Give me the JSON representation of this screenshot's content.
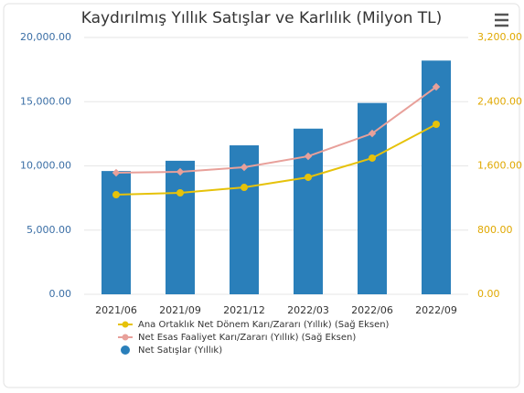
{
  "chart_data": {
    "type": "bar-line",
    "title": "Kaydırılmış Yıllık Satışlar ve Karlılık (Milyon TL)",
    "categories": [
      "2021/06",
      "2021/09",
      "2021/12",
      "2022/03",
      "2022/06",
      "2022/09"
    ],
    "series": [
      {
        "name": "Ana Ortaklık Net Dönem Karı/Zararı (Yıllık) (Sağ Eksen)",
        "type": "line",
        "axis": "y2",
        "color": "#e6c20a",
        "values": [
          1241,
          1264,
          1332,
          1458,
          1697,
          2118
        ]
      },
      {
        "name": "Net Esas Faaliyet Karı/Zararı (Yıllık) (Sağ Eksen)",
        "type": "line",
        "axis": "y2",
        "color": "#e8a09a",
        "values": [
          1515,
          1526,
          1583,
          1720,
          2004,
          2585
        ]
      },
      {
        "name": "Net Satışlar (Yıllık)",
        "type": "bar",
        "color": "#2a7fba",
        "values": [
          9600,
          10400,
          11600,
          12900,
          14900,
          18200
        ]
      }
    ],
    "ylim": [
      0,
      20000
    ],
    "yticks": [
      {
        "value": 0,
        "label": "0.00"
      },
      {
        "value": 5000,
        "label": "5,000.00"
      },
      {
        "value": 10000,
        "label": "10,000.00"
      },
      {
        "value": 15000,
        "label": "15,000.00"
      },
      {
        "value": 20000,
        "label": "20,000.00"
      }
    ],
    "y2lim": [
      0,
      3200
    ],
    "y2ticks": [
      {
        "value": 0,
        "label": "0.00"
      },
      {
        "value": 800,
        "label": "800.00"
      },
      {
        "value": 1600,
        "label": "1,600.00"
      },
      {
        "value": 2400,
        "label": "2,400.00"
      },
      {
        "value": 3200,
        "label": "3,200.00"
      }
    ],
    "grid": true
  }
}
